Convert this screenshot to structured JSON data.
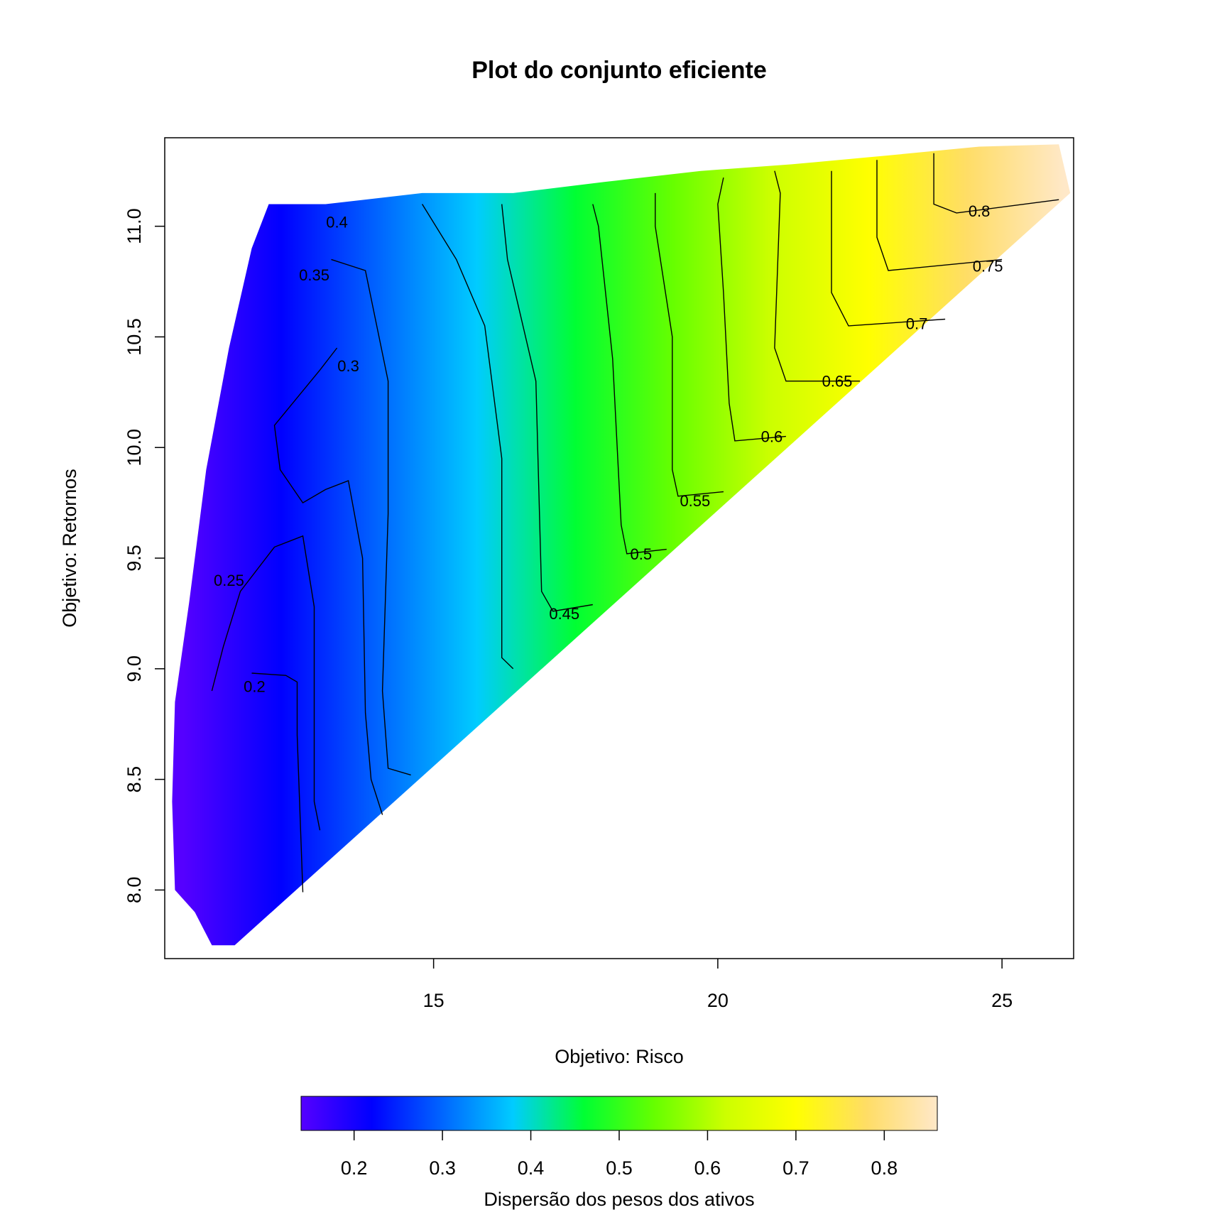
{
  "chart_data": {
    "type": "heatmap",
    "title": "Plot do conjunto eficiente",
    "xlabel": "Objetivo: Risco",
    "ylabel": "Objetivo: Retornos",
    "xlim": [
      10.27,
      26.26
    ],
    "ylim": [
      7.69,
      11.4
    ],
    "x_ticks": [
      15,
      20,
      25
    ],
    "x_tick_labels": [
      "15",
      "20",
      "25"
    ],
    "y_ticks": [
      8.0,
      8.5,
      9.0,
      9.5,
      10.0,
      10.5,
      11.0
    ],
    "y_tick_labels": [
      "8.0",
      "8.5",
      "9.0",
      "9.5",
      "10.0",
      "10.5",
      "11.0"
    ],
    "grid": false,
    "region": {
      "description_boundary": [
        [
          11.1,
          7.75
        ],
        [
          10.8,
          7.9
        ],
        [
          10.45,
          8.0
        ],
        [
          10.4,
          8.4
        ],
        [
          10.45,
          8.85
        ],
        [
          10.7,
          9.3
        ],
        [
          11.0,
          9.9
        ],
        [
          11.4,
          10.45
        ],
        [
          11.8,
          10.9
        ],
        [
          12.1,
          11.1
        ],
        [
          13.1,
          11.1
        ],
        [
          14.8,
          11.15
        ],
        [
          16.4,
          11.15
        ],
        [
          18.0,
          11.2
        ],
        [
          19.7,
          11.25
        ],
        [
          21.3,
          11.28
        ],
        [
          23.0,
          11.32
        ],
        [
          24.6,
          11.36
        ],
        [
          26.0,
          11.37
        ],
        [
          26.2,
          11.15
        ]
      ],
      "lower_boundary": [
        [
          11.5,
          7.75
        ],
        [
          26.2,
          11.15
        ]
      ]
    },
    "heat_scale": {
      "label": "Dispersão dos pesos dos ativos",
      "range": [
        0.14,
        0.86
      ],
      "ticks": [
        0.2,
        0.3,
        0.4,
        0.5,
        0.6,
        0.7,
        0.8
      ],
      "tick_labels": [
        "0.2",
        "0.3",
        "0.4",
        "0.5",
        "0.6",
        "0.7",
        "0.8"
      ],
      "colors": [
        "#5500ff",
        "#0000ff",
        "#0066ff",
        "#00ccff",
        "#00ff33",
        "#66ff00",
        "#ccff00",
        "#ffff00",
        "#ffdd66",
        "#ffe8c8"
      ]
    },
    "contours": [
      {
        "level": "0.2",
        "label_at": [
          11.85,
          8.92
        ],
        "points": [
          [
            12.7,
            7.99
          ],
          [
            12.6,
            8.7
          ],
          [
            12.6,
            8.94
          ],
          [
            12.4,
            8.97
          ],
          [
            11.8,
            8.98
          ]
        ]
      },
      {
        "level": "0.25",
        "label_at": [
          11.4,
          9.4
        ],
        "points": [
          [
            13.0,
            8.27
          ],
          [
            12.9,
            8.4
          ],
          [
            12.9,
            9.28
          ],
          [
            12.7,
            9.6
          ],
          [
            12.2,
            9.55
          ],
          [
            11.6,
            9.35
          ],
          [
            11.3,
            9.1
          ],
          [
            11.1,
            8.9
          ]
        ]
      },
      {
        "level": "0.3",
        "label_at": [
          13.5,
          10.37
        ],
        "points": [
          [
            14.1,
            8.34
          ],
          [
            13.9,
            8.5
          ],
          [
            13.8,
            8.8
          ],
          [
            13.75,
            9.5
          ],
          [
            13.5,
            9.85
          ],
          [
            13.1,
            9.81
          ],
          [
            12.7,
            9.75
          ],
          [
            12.3,
            9.9
          ],
          [
            12.2,
            10.1
          ],
          [
            13.0,
            10.35
          ],
          [
            13.3,
            10.45
          ]
        ]
      },
      {
        "level": "0.35",
        "label_at": [
          12.9,
          10.78
        ],
        "points": [
          [
            14.6,
            8.52
          ],
          [
            14.2,
            8.55
          ],
          [
            14.1,
            8.9
          ],
          [
            14.2,
            9.7
          ],
          [
            14.2,
            10.3
          ],
          [
            14.0,
            10.55
          ],
          [
            13.8,
            10.8
          ],
          [
            13.2,
            10.85
          ]
        ]
      },
      {
        "level": "0.4",
        "label_at": [
          13.3,
          11.02
        ],
        "points": [
          [
            16.4,
            9.0
          ],
          [
            16.2,
            9.05
          ],
          [
            16.2,
            9.95
          ],
          [
            15.9,
            10.55
          ],
          [
            15.4,
            10.85
          ],
          [
            14.8,
            11.1
          ]
        ]
      },
      {
        "level": "0.45",
        "label_at": [
          17.3,
          9.25
        ],
        "points": [
          [
            17.8,
            9.29
          ],
          [
            17.1,
            9.26
          ],
          [
            16.9,
            9.35
          ],
          [
            16.8,
            10.3
          ],
          [
            16.3,
            10.85
          ],
          [
            16.2,
            11.1
          ]
        ]
      },
      {
        "level": "0.5",
        "label_at": [
          18.65,
          9.52
        ],
        "points": [
          [
            19.1,
            9.54
          ],
          [
            18.4,
            9.52
          ],
          [
            18.3,
            9.65
          ],
          [
            18.15,
            10.4
          ],
          [
            17.9,
            11.0
          ],
          [
            17.8,
            11.1
          ]
        ]
      },
      {
        "level": "0.55",
        "label_at": [
          19.6,
          9.76
        ],
        "points": [
          [
            20.1,
            9.8
          ],
          [
            19.3,
            9.78
          ],
          [
            19.2,
            9.9
          ],
          [
            19.2,
            10.5
          ],
          [
            18.9,
            11.0
          ],
          [
            18.9,
            11.15
          ]
        ]
      },
      {
        "level": "0.6",
        "label_at": [
          20.95,
          10.05
        ],
        "points": [
          [
            21.2,
            10.05
          ],
          [
            20.3,
            10.03
          ],
          [
            20.2,
            10.2
          ],
          [
            20.1,
            10.7
          ],
          [
            20.0,
            11.1
          ],
          [
            20.1,
            11.22
          ]
        ]
      },
      {
        "level": "0.65",
        "label_at": [
          22.1,
          10.3
        ],
        "points": [
          [
            22.5,
            10.3
          ],
          [
            21.2,
            10.3
          ],
          [
            21.0,
            10.45
          ],
          [
            21.1,
            11.15
          ],
          [
            21.0,
            11.25
          ]
        ]
      },
      {
        "level": "0.7",
        "label_at": [
          23.5,
          10.56
        ],
        "points": [
          [
            24.0,
            10.58
          ],
          [
            22.3,
            10.55
          ],
          [
            22.0,
            10.7
          ],
          [
            22.0,
            11.25
          ]
        ]
      },
      {
        "level": "0.75",
        "label_at": [
          24.75,
          10.82
        ],
        "points": [
          [
            25.0,
            10.85
          ],
          [
            23.0,
            10.8
          ],
          [
            22.8,
            10.95
          ],
          [
            22.8,
            11.3
          ]
        ]
      },
      {
        "level": "0.8",
        "label_at": [
          24.6,
          11.07
        ],
        "points": [
          [
            26.0,
            11.12
          ],
          [
            24.2,
            11.06
          ],
          [
            23.8,
            11.1
          ],
          [
            23.8,
            11.33
          ]
        ]
      }
    ]
  }
}
